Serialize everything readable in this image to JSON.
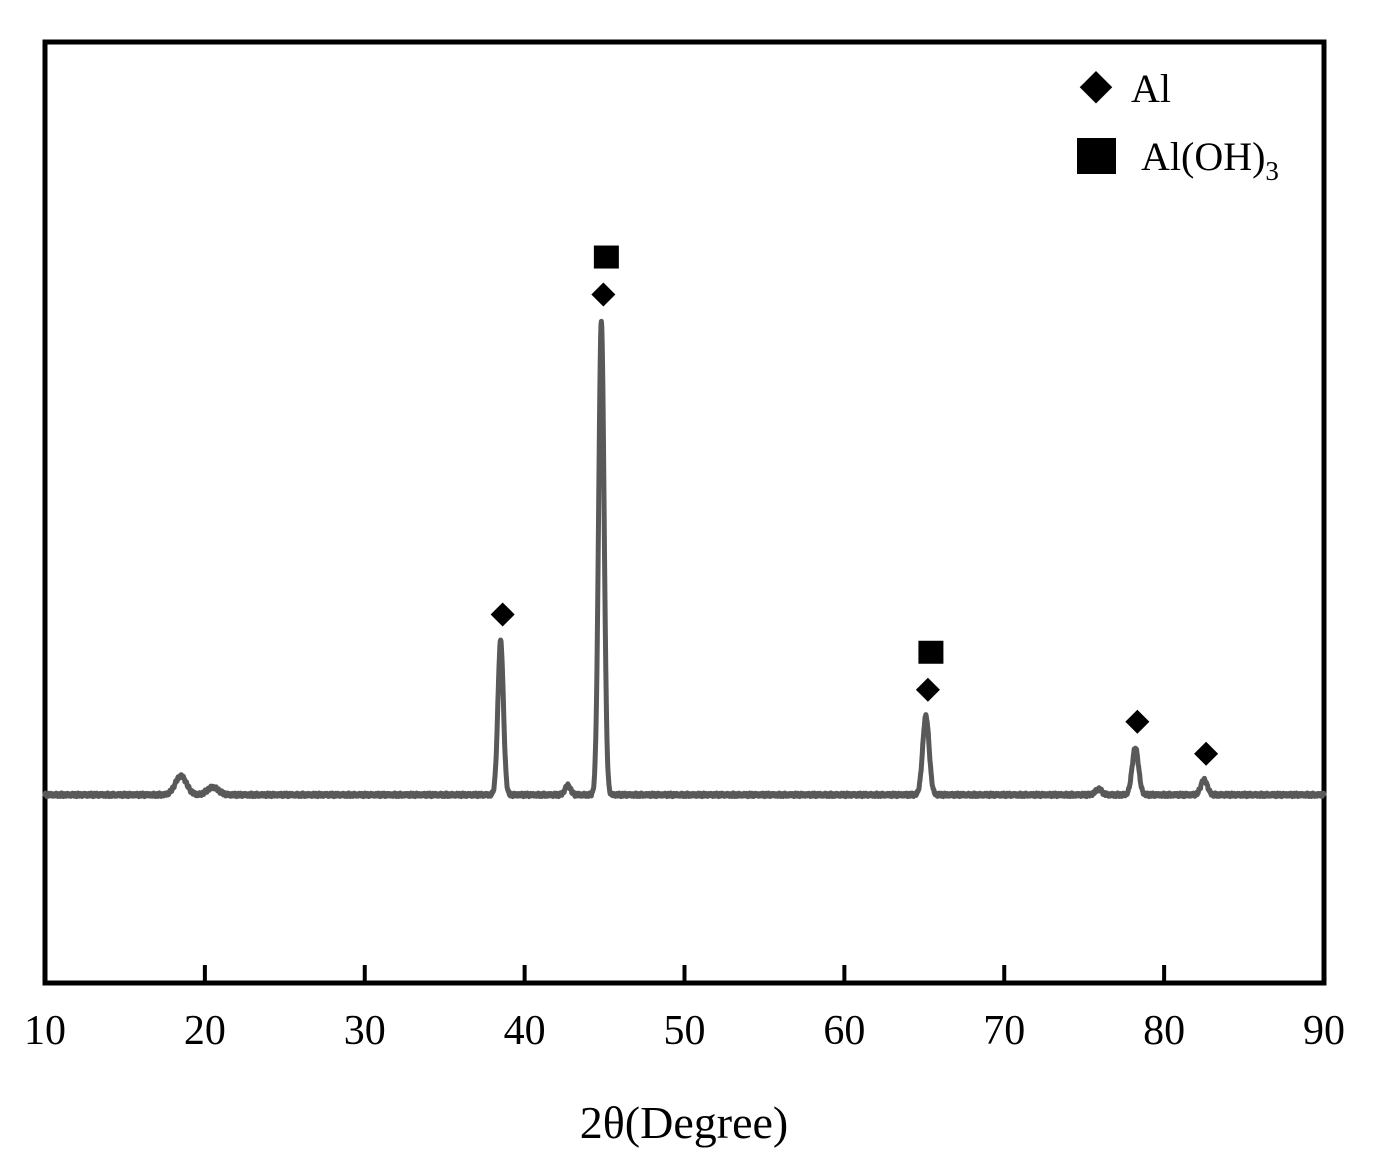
{
  "chart_data": {
    "type": "line",
    "title": "",
    "xlabel": "2θ(Degree)",
    "ylabel": "",
    "xlim": [
      10,
      90
    ],
    "ylim": [
      -1.0,
      4.0
    ],
    "x_ticks": [
      10,
      20,
      30,
      40,
      50,
      60,
      70,
      80,
      90
    ],
    "x_tick_labels": [
      "10",
      "20",
      "30",
      "40",
      "50",
      "60",
      "70",
      "80",
      "90"
    ],
    "y_axis_visible": false,
    "grid": false,
    "line_color": "#595959",
    "marker_color": "#000000",
    "series": [
      {
        "baseline": 0.0,
        "peaks": [
          {
            "x": 18.5,
            "y": 0.1
          },
          {
            "x": 20.5,
            "y": 0.04
          },
          {
            "x": 38.5,
            "y": 0.82
          },
          {
            "x": 42.7,
            "y": 0.05
          },
          {
            "x": 44.8,
            "y": 2.52
          },
          {
            "x": 65.1,
            "y": 0.42
          },
          {
            "x": 75.9,
            "y": 0.03
          },
          {
            "x": 78.2,
            "y": 0.25
          },
          {
            "x": 82.5,
            "y": 0.08
          }
        ]
      }
    ],
    "legend": {
      "position": "top-right",
      "entries": [
        {
          "marker": "diamond",
          "label": "Al",
          "subscript": ""
        },
        {
          "marker": "square",
          "label": "Al(OH)",
          "subscript": "3"
        }
      ]
    },
    "annotations": [
      {
        "x": 38.5,
        "markers": [
          "diamond"
        ]
      },
      {
        "x": 44.8,
        "markers": [
          "diamond",
          "square"
        ]
      },
      {
        "x": 65.1,
        "markers": [
          "diamond",
          "square"
        ]
      },
      {
        "x": 78.2,
        "markers": [
          "diamond"
        ]
      },
      {
        "x": 82.5,
        "markers": [
          "diamond"
        ]
      }
    ]
  }
}
